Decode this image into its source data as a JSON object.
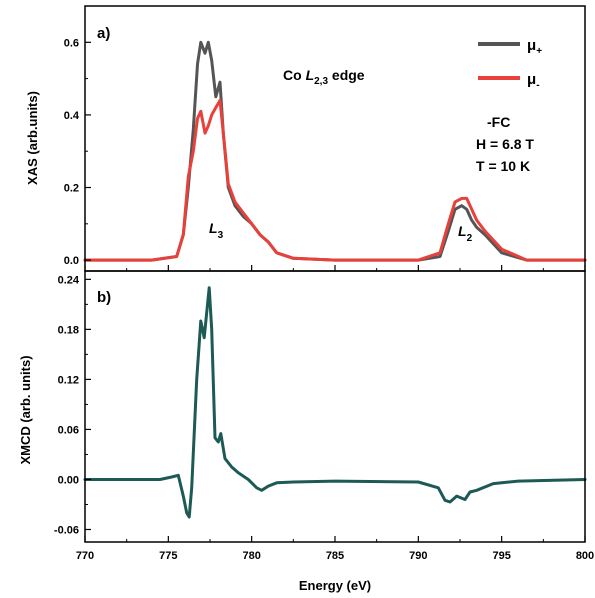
{
  "chart_data": [
    {
      "panel": "a)",
      "type": "line",
      "ylabel": "XAS (arb.units)",
      "xlabel": "",
      "xlim": [
        770,
        800
      ],
      "ylim": [
        -0.03,
        0.7
      ],
      "yticks": [
        0.0,
        0.2,
        0.4,
        0.6
      ],
      "ytick_labels": [
        "0.0",
        "0.2",
        "0.4",
        "0.6"
      ],
      "legend": {
        "placement": "top-right",
        "entries": [
          {
            "symbol": "μ",
            "subscript": "+",
            "color": "#555555"
          },
          {
            "symbol": "μ",
            "subscript": "-",
            "color": "#e8413b"
          }
        ]
      },
      "annotations": {
        "edge_prefix": "Co ",
        "edge_symbol": "L",
        "edge_sub": "2,3",
        "edge_suffix": " edge",
        "conditions": [
          "-FC",
          "H = 6.8 T",
          "T = 10 K"
        ],
        "peak_L3_symbol": "L",
        "peak_L3_sub": "3",
        "peak_L2_symbol": "L",
        "peak_L2_sub": "2"
      },
      "series": [
        {
          "color": "#555555",
          "x": [
            770,
            774,
            775.5,
            775.9,
            776.2,
            776.5,
            776.75,
            776.95,
            777.2,
            777.4,
            777.6,
            777.85,
            778.1,
            778.3,
            778.6,
            779.0,
            779.5,
            780.0,
            780.5,
            781.0,
            781.5,
            782.5,
            785,
            790,
            791.3,
            791.8,
            792.2,
            792.6,
            792.9,
            793.2,
            793.5,
            794,
            795,
            796.5,
            800
          ],
          "y": [
            0.0,
            0.0,
            0.01,
            0.07,
            0.2,
            0.36,
            0.54,
            0.6,
            0.57,
            0.6,
            0.55,
            0.45,
            0.49,
            0.35,
            0.2,
            0.15,
            0.12,
            0.1,
            0.07,
            0.05,
            0.02,
            0.005,
            0.0,
            0.0,
            0.01,
            0.08,
            0.14,
            0.15,
            0.14,
            0.11,
            0.09,
            0.07,
            0.02,
            0.0,
            0.0
          ]
        },
        {
          "color": "#e8413b",
          "x": [
            770,
            774,
            775.5,
            775.9,
            776.2,
            776.5,
            776.75,
            776.95,
            777.2,
            777.4,
            777.6,
            777.85,
            778.1,
            778.3,
            778.6,
            779.0,
            779.5,
            780.0,
            780.5,
            781.0,
            781.5,
            782.5,
            785,
            790,
            791.3,
            791.8,
            792.2,
            792.6,
            792.9,
            793.2,
            793.5,
            794,
            795,
            796.5,
            800
          ],
          "y": [
            0.0,
            0.0,
            0.01,
            0.07,
            0.23,
            0.3,
            0.39,
            0.41,
            0.35,
            0.37,
            0.4,
            0.42,
            0.44,
            0.35,
            0.21,
            0.16,
            0.13,
            0.1,
            0.07,
            0.05,
            0.02,
            0.005,
            0.0,
            0.0,
            0.02,
            0.1,
            0.16,
            0.17,
            0.17,
            0.14,
            0.11,
            0.08,
            0.03,
            0.0,
            0.0
          ]
        }
      ]
    },
    {
      "panel": "b)",
      "type": "line",
      "ylabel": "XMCD (arb. units)",
      "xlabel": "Energy (eV)",
      "xlim": [
        770,
        800
      ],
      "xticks": [
        770,
        775,
        780,
        785,
        790,
        795,
        800
      ],
      "xtick_labels": [
        "770",
        "775",
        "780",
        "785",
        "790",
        "795",
        "800"
      ],
      "ylim": [
        -0.075,
        0.25
      ],
      "yticks": [
        -0.06,
        0.0,
        0.06,
        0.12,
        0.18,
        0.24
      ],
      "ytick_labels": [
        "-0.06",
        "0.00",
        "0.06",
        "0.12",
        "0.18",
        "0.24"
      ],
      "series": [
        {
          "color": "#1d5a55",
          "x": [
            770,
            774.5,
            775.2,
            775.6,
            775.9,
            776.1,
            776.25,
            776.4,
            776.7,
            776.95,
            777.15,
            777.3,
            777.45,
            777.6,
            777.8,
            778.0,
            778.15,
            778.4,
            778.8,
            779.2,
            779.8,
            780.3,
            780.6,
            781.0,
            781.5,
            782.5,
            785,
            790,
            791.2,
            791.6,
            791.9,
            792.3,
            792.8,
            793.1,
            793.5,
            794.5,
            796,
            800
          ],
          "y": [
            0.0,
            0.0,
            0.003,
            0.005,
            -0.02,
            -0.04,
            -0.045,
            -0.01,
            0.12,
            0.19,
            0.17,
            0.2,
            0.23,
            0.18,
            0.05,
            0.045,
            0.055,
            0.025,
            0.015,
            0.008,
            0.0,
            -0.01,
            -0.013,
            -0.008,
            -0.004,
            -0.003,
            -0.002,
            -0.003,
            -0.01,
            -0.025,
            -0.027,
            -0.02,
            -0.024,
            -0.015,
            -0.013,
            -0.005,
            -0.002,
            0.0
          ]
        }
      ]
    }
  ]
}
